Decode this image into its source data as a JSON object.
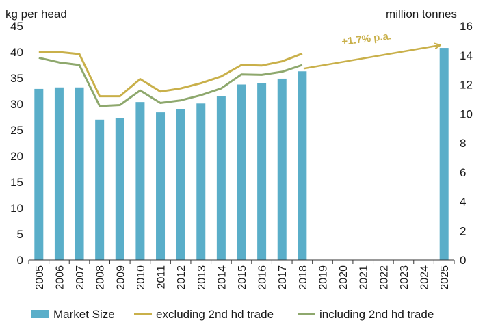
{
  "chart_data": {
    "type": "bar",
    "y_left_label": "kg per head",
    "y_right_label": "million tonnes",
    "y_left_ticks": [
      0,
      5,
      10,
      15,
      20,
      25,
      30,
      35,
      40,
      45
    ],
    "y_right_ticks": [
      0,
      2,
      4,
      6,
      8,
      10,
      12,
      14,
      16
    ],
    "ylim_left": [
      0,
      45
    ],
    "ylim_right": [
      0,
      16
    ],
    "categories": [
      "2005",
      "2006",
      "2007",
      "2008",
      "2009",
      "2010",
      "2011",
      "2012",
      "2013",
      "2014",
      "2015",
      "2016",
      "2017",
      "2018",
      "2019",
      "2020",
      "2021",
      "2022",
      "2023",
      "2024",
      "2025"
    ],
    "series": [
      {
        "name": "Market Size",
        "kind": "bar",
        "axis": "right",
        "color": "#5aaec9",
        "values": [
          11.7,
          11.8,
          11.8,
          9.6,
          9.7,
          10.8,
          10.1,
          10.3,
          10.7,
          11.2,
          12.0,
          12.1,
          12.4,
          12.9,
          null,
          null,
          null,
          null,
          null,
          null,
          14.5
        ]
      },
      {
        "name": "excluding 2nd hd trade",
        "kind": "line",
        "axis": "left",
        "color": "#c9b04a",
        "values": [
          40.0,
          40.0,
          39.6,
          31.5,
          31.5,
          34.8,
          32.4,
          33.0,
          34.0,
          35.3,
          37.5,
          37.4,
          38.2,
          39.7,
          null,
          null,
          null,
          null,
          null,
          null,
          null
        ]
      },
      {
        "name": "including 2nd hd trade",
        "kind": "line",
        "axis": "left",
        "color": "#8ea86d",
        "values": [
          38.9,
          38.0,
          37.5,
          29.6,
          29.8,
          32.6,
          30.2,
          30.7,
          31.7,
          33.0,
          35.7,
          35.6,
          36.2,
          37.5,
          null,
          null,
          null,
          null,
          null,
          null,
          null
        ]
      }
    ],
    "projection": {
      "from_category": "2018",
      "to_category": "2025",
      "axis": "right",
      "from_value": 12.9,
      "to_value": 14.5,
      "color": "#c9b04a",
      "label": "+1.7% p.a."
    },
    "legend": {
      "placement": "bottom",
      "items": [
        "Market Size",
        "excluding 2nd hd trade",
        "including 2nd hd trade"
      ]
    },
    "grid": false
  }
}
